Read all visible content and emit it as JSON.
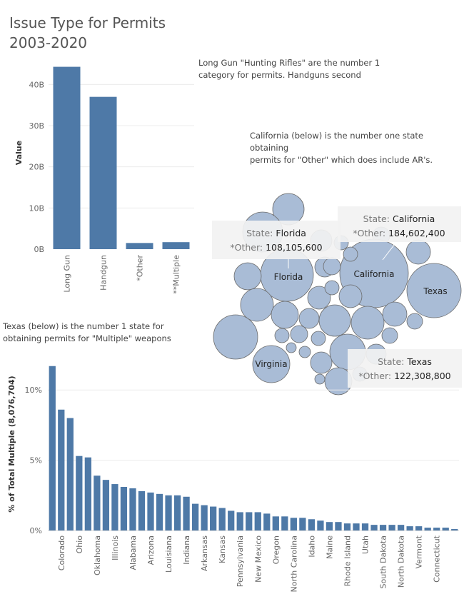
{
  "title": {
    "line1": "Issue Type for Permits",
    "line2": "2003-2020"
  },
  "notes": {
    "top_line1": "Long Gun \"Hunting Rifles\" are the number 1",
    "top_line2": "category for permits. Handguns second",
    "mid_line1": "California (below) is the number one state obtaining",
    "mid_line2": "permits for \"Other\" which does include AR's.",
    "left_line1": "Texas (below) is the number 1 state for",
    "left_line2": "obtaining permits for \"Multiple\" weapons"
  },
  "colors": {
    "bar": "#4e79a7",
    "bubble": "#a9bcd6",
    "grid": "#ececec"
  },
  "chart_data": [
    {
      "type": "bar",
      "categories": [
        "Long Gun",
        "Handgun",
        "*Other",
        "**Multiple"
      ],
      "values": [
        44.3,
        37.0,
        1.5,
        1.7
      ],
      "ylabel": "Value",
      "ylim": [
        0,
        47
      ],
      "yticks": [
        0,
        10,
        20,
        30,
        40
      ],
      "ytick_labels": [
        "0B",
        "10B",
        "20B",
        "30B",
        "40B"
      ],
      "grid": true
    },
    {
      "type": "bubble",
      "measure": "*Other",
      "labeled": [
        {
          "state": "Florida",
          "value": 108105600
        },
        {
          "state": "California",
          "value": 184602400
        },
        {
          "state": "Texas",
          "value": 122308800
        },
        {
          "state": "Virginia",
          "value": null
        }
      ],
      "tooltips": [
        {
          "key": "State:",
          "state": "Florida",
          "value_key": "*Other:",
          "value": "108,105,600"
        },
        {
          "key": "State:",
          "state": "California",
          "value_key": "*Other:",
          "value": "184,602,400"
        },
        {
          "key": "State:",
          "state": "Texas",
          "value_key": "*Other:",
          "value": "122,308,800"
        }
      ]
    },
    {
      "type": "bar",
      "ylabel": "% of Total Multiple (8,076,704)",
      "ylim": [
        0,
        12.5
      ],
      "yticks": [
        0,
        5,
        10
      ],
      "ytick_labels": [
        "0%",
        "5%",
        "10%"
      ],
      "values": [
        11.7,
        8.6,
        8.0,
        5.3,
        5.2,
        3.9,
        3.6,
        3.3,
        3.1,
        3.0,
        2.8,
        2.7,
        2.6,
        2.5,
        2.5,
        2.4,
        1.9,
        1.8,
        1.7,
        1.6,
        1.4,
        1.3,
        1.3,
        1.3,
        1.2,
        1.0,
        1.0,
        0.9,
        0.9,
        0.8,
        0.7,
        0.6,
        0.6,
        0.5,
        0.5,
        0.5,
        0.4,
        0.4,
        0.4,
        0.4,
        0.3,
        0.3,
        0.2,
        0.2,
        0.2,
        0.1
      ],
      "tick_labels": [
        "Colorado",
        "Ohio",
        "Oklahoma",
        "Illinois",
        "Alabama",
        "Arizona",
        "Louisiana",
        "Indiana",
        "Arkansas",
        "Kansas",
        "Pennsylvania",
        "New Mexico",
        "Oregon",
        "North Carolina",
        "Idaho",
        "Maine",
        "Rhode Island",
        "Utah",
        "South Dakota",
        "North Dakota",
        "Vermont",
        "Connecticut"
      ],
      "tick_label_bar_index": [
        1,
        3,
        5,
        7,
        9,
        11,
        13,
        15,
        17,
        19,
        21,
        23,
        25,
        27,
        29,
        31,
        33,
        35,
        37,
        39,
        41,
        43
      ],
      "grid": true
    }
  ]
}
